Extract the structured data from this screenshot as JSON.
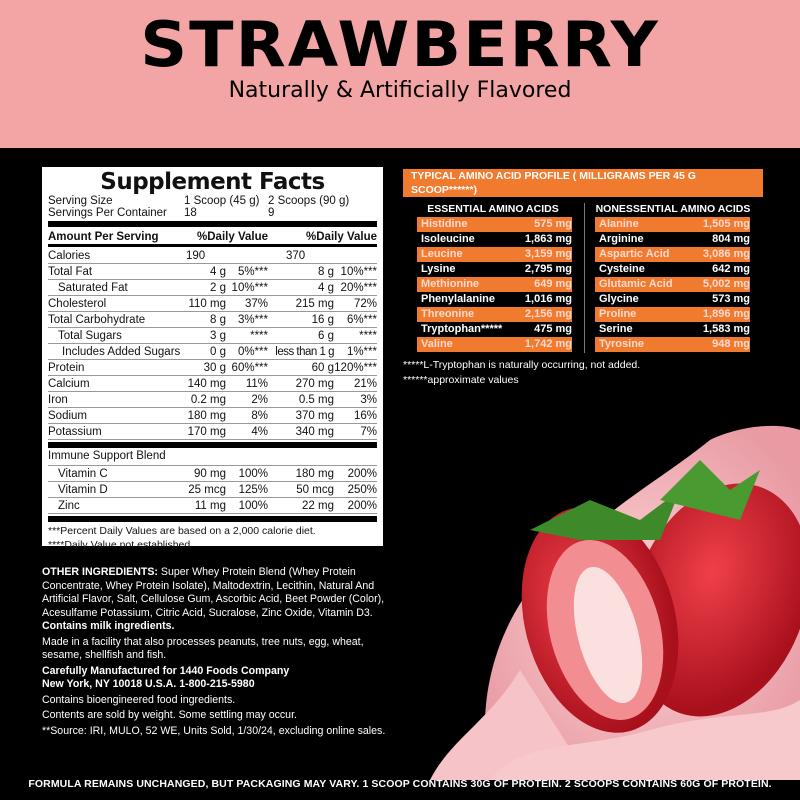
{
  "header": {
    "title": "STRAWBERRY",
    "subtitle": "Naturally & Artificially Flavored"
  },
  "supplement_facts": {
    "title": "Supplement Facts",
    "serving_size_label": "Serving Size",
    "serving_size_1": "1 Scoop (45 g)",
    "serving_size_2": "2 Scoops (90 g)",
    "servings_label": "Servings Per Container",
    "servings_1": "18",
    "servings_2": "9",
    "amount_header": "Amount Per Serving",
    "dv_header_1": "%Daily Value",
    "dv_header_2": "%Daily Value",
    "rows": [
      {
        "name": "Calories",
        "a1": "190",
        "d1": "",
        "a2": "370",
        "d2": "",
        "indent": 0
      },
      {
        "name": "Total Fat",
        "a1": "4 g",
        "d1": "5%***",
        "a2": "8 g",
        "d2": "10%***",
        "indent": 0
      },
      {
        "name": "Saturated Fat",
        "a1": "2 g",
        "d1": "10%***",
        "a2": "4 g",
        "d2": "20%***",
        "indent": 1
      },
      {
        "name": "Cholesterol",
        "a1": "110 mg",
        "d1": "37%",
        "a2": "215 mg",
        "d2": "72%",
        "indent": 0
      },
      {
        "name": "Total Carbohydrate",
        "a1": "8 g",
        "d1": "3%***",
        "a2": "16 g",
        "d2": "6%***",
        "indent": 0
      },
      {
        "name": "Total Sugars",
        "a1": "3 g",
        "d1": "****",
        "a2": "6 g",
        "d2": "****",
        "indent": 1
      },
      {
        "name": "Includes Added Sugars",
        "a1": "0 g",
        "d1": "0%***",
        "a2": "less than 1 g",
        "d2": "1%***",
        "indent": 2
      },
      {
        "name": "Protein",
        "a1": "30 g",
        "d1": "60%***",
        "a2": "60 g",
        "d2": "120%***",
        "indent": 0
      },
      {
        "name": "Calcium",
        "a1": "140 mg",
        "d1": "11%",
        "a2": "270 mg",
        "d2": "21%",
        "indent": 0
      },
      {
        "name": "Iron",
        "a1": "0.2 mg",
        "d1": "2%",
        "a2": "0.5 mg",
        "d2": "3%",
        "indent": 0
      },
      {
        "name": "Sodium",
        "a1": "180 mg",
        "d1": "8%",
        "a2": "370 mg",
        "d2": "16%",
        "indent": 0
      },
      {
        "name": "Potassium",
        "a1": "170 mg",
        "d1": "4%",
        "a2": "340 mg",
        "d2": "7%",
        "indent": 0
      }
    ],
    "blend_label": "Immune Support Blend",
    "blend_rows": [
      {
        "name": "Vitamin C",
        "a1": "90 mg",
        "d1": "100%",
        "a2": "180 mg",
        "d2": "200%"
      },
      {
        "name": "Vitamin D",
        "a1": "25 mcg",
        "d1": "125%",
        "a2": "50 mcg",
        "d2": "250%"
      },
      {
        "name": "Zinc",
        "a1": "11 mg",
        "d1": "100%",
        "a2": "22 mg",
        "d2": "200%"
      }
    ],
    "footnote_1": "***Percent Daily Values are based on a 2,000 calorie diet.",
    "footnote_2": "****Daily Value not established"
  },
  "amino": {
    "title": "TYPICAL AMINO ACID PROFILE ( MILLIGRAMS PER 45 G SCOOP******)",
    "essential_header": "ESSENTIAL AMINO ACIDS",
    "nonessential_header": "NONESSENTIAL AMINO ACIDS",
    "essential": [
      [
        "Histidine",
        "575 mg"
      ],
      [
        "Isoleucine",
        "1,863 mg"
      ],
      [
        "Leucine",
        "3,159 mg"
      ],
      [
        "Lysine",
        "2,795 mg"
      ],
      [
        "Methionine",
        "649 mg"
      ],
      [
        "Phenylalanine",
        "1,016 mg"
      ],
      [
        "Threonine",
        "2,156 mg"
      ],
      [
        "Tryptophan*****",
        "475 mg"
      ],
      [
        "Valine",
        "1,742 mg"
      ]
    ],
    "nonessential": [
      [
        "Alanine",
        "1,505 mg"
      ],
      [
        "Arginine",
        "804 mg"
      ],
      [
        "Aspartic Acid",
        "3,086 mg"
      ],
      [
        "Cysteine",
        "642 mg"
      ],
      [
        "Glutamic Acid",
        "5,002 mg"
      ],
      [
        "Glycine",
        "573 mg"
      ],
      [
        "Proline",
        "1,896 mg"
      ],
      [
        "Serine",
        "1,583 mg"
      ],
      [
        "Tyrosine",
        "948 mg"
      ]
    ],
    "note_1": "*****L-Tryptophan is naturally occurring, not added.",
    "note_2": "******approximate values"
  },
  "ingredients": {
    "label": "OTHER INGREDIENTS:",
    "text": " Super Whey Protein Blend (Whey Protein Concentrate, Whey Protein Isolate), Maltodextrin, Lecithin, Natural And Artificial Flavor, Salt, Cellulose Gum, Ascorbic Acid, Beet Powder (Color), Acesulfame Potassium, Citric Acid, Sucralose, Zinc Oxide, Vitamin D3.",
    "milk": "Contains milk ingredients.",
    "facility": "Made in a facility that also processes peanuts, tree nuts, egg, wheat, sesame, shellfish and fish.",
    "manufacturer_1": "Carefully Manufactured for 1440 Foods Company",
    "manufacturer_2": "New York, NY 10018 U.S.A.   1-800-215-5980",
    "bioengineered": "Contains bioengineered food ingredients.",
    "settling": "Contents are sold by weight. Some settling may occur.",
    "source": "**Source: IRI, MULO, 52 WE, Units Sold, 1/30/24, excluding online sales."
  },
  "footer": "FORMULA REMAINS UNCHANGED, BUT PACKAGING MAY VARY. 1 SCOOP CONTAINS 30G OF PROTEIN. 2 SCOOPS CONTAINS 60G OF PROTEIN.",
  "colors": {
    "header_bg": "#f3a5a6",
    "accent_orange": "#f07a2e",
    "background": "#000000"
  }
}
